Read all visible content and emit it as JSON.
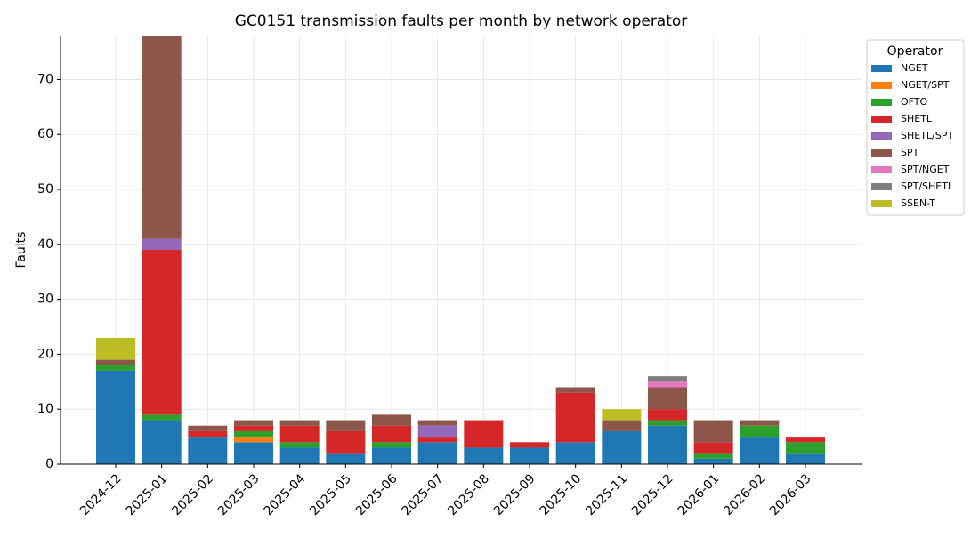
{
  "chart_data": {
    "type": "stacked_bar",
    "title": "GC0151 transmission faults per month by network operator",
    "y_label": "Faults",
    "legend_title": "Operator",
    "categories": [
      "2024-12",
      "2025-01",
      "2025-02",
      "2025-03",
      "2025-04",
      "2025-05",
      "2025-06",
      "2025-07",
      "2025-08",
      "2025-09",
      "2025-10",
      "2025-11",
      "2025-12",
      "2026-01",
      "2026-02",
      "2026-03"
    ],
    "series": [
      {
        "name": "NGET",
        "color": "#1f77b4",
        "values": [
          17,
          8,
          5,
          4,
          3,
          2,
          3,
          4,
          3,
          3,
          4,
          6,
          7,
          1,
          5,
          2
        ]
      },
      {
        "name": "NGET/SPT",
        "color": "#ff7f0e",
        "values": [
          0,
          0,
          0,
          1,
          0,
          0,
          0,
          0,
          0,
          0,
          0,
          0,
          0,
          0,
          0,
          0
        ]
      },
      {
        "name": "OFTO",
        "color": "#2ca02c",
        "values": [
          1,
          1,
          0,
          1,
          1,
          0,
          1,
          0,
          0,
          0,
          0,
          0,
          1,
          1,
          2,
          2
        ]
      },
      {
        "name": "SHETL",
        "color": "#d62728",
        "values": [
          0,
          30,
          1,
          1,
          3,
          4,
          3,
          1,
          5,
          1,
          9,
          0,
          2,
          2,
          0,
          1
        ]
      },
      {
        "name": "SHETL/SPT",
        "color": "#9467bd",
        "values": [
          0,
          2,
          0,
          0,
          0,
          0,
          0,
          2,
          0,
          0,
          0,
          0,
          0,
          0,
          0,
          0
        ]
      },
      {
        "name": "SPT",
        "color": "#8c564b",
        "values": [
          1,
          37,
          1,
          1,
          1,
          2,
          2,
          1,
          0,
          0,
          1,
          2,
          4,
          4,
          1,
          0
        ]
      },
      {
        "name": "SPT/NGET",
        "color": "#e377c2",
        "values": [
          0,
          0,
          0,
          0,
          0,
          0,
          0,
          0,
          0,
          0,
          0,
          0,
          1,
          0,
          0,
          0
        ]
      },
      {
        "name": "SPT/SHETL",
        "color": "#7f7f7f",
        "values": [
          0,
          0,
          0,
          0,
          0,
          0,
          0,
          0,
          0,
          0,
          0,
          0,
          1,
          0,
          0,
          0
        ]
      },
      {
        "name": "SSEN-T",
        "color": "#bcbd22",
        "values": [
          4,
          0,
          0,
          0,
          0,
          0,
          0,
          0,
          0,
          0,
          0,
          2,
          0,
          0,
          0,
          0
        ]
      }
    ],
    "ylim": [
      0,
      78
    ],
    "yticks": [
      0,
      10,
      20,
      30,
      40,
      50,
      60,
      70
    ],
    "grid": true
  }
}
